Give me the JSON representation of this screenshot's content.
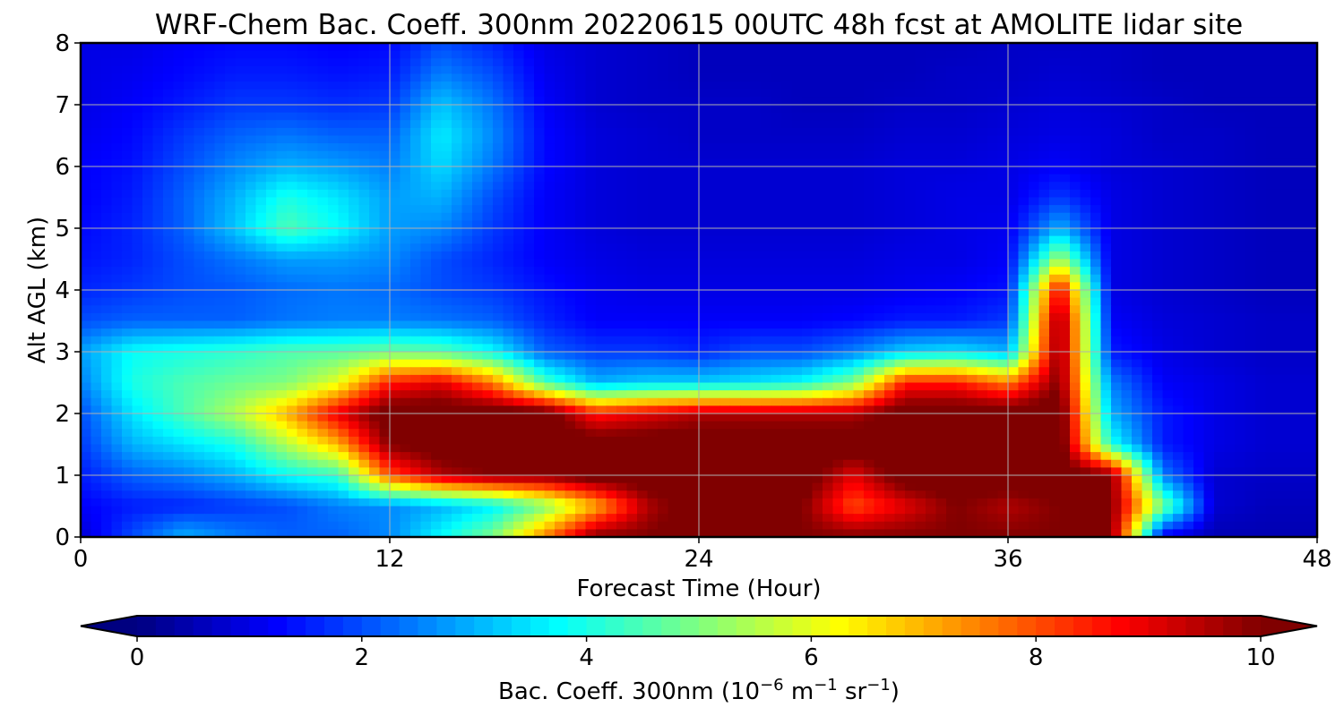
{
  "chart_data": {
    "type": "heatmap",
    "title": "WRF-Chem Bac. Coeff. 300nm  20220615 00UTC 48h fcst at AMOLITE lidar site",
    "xlabel": "Forecast Time (Hour)",
    "ylabel": "Alt AGL (km)",
    "xlim": [
      0,
      48
    ],
    "ylim": [
      0,
      8
    ],
    "x_ticks": [
      "0",
      "12",
      "24",
      "36",
      "48"
    ],
    "y_ticks": [
      "0",
      "1",
      "2",
      "3",
      "4",
      "5",
      "6",
      "7",
      "8"
    ],
    "grid": true,
    "colormap": "jet",
    "colorbar": {
      "label_main": "Bac. Coeff. 300nm  (10",
      "label_exp1": "−6",
      "label_m": " m",
      "label_exp2": "−1",
      "label_sr": " sr",
      "label_exp3": "−1",
      "label_close": ")",
      "range": [
        0,
        10
      ],
      "ticks": [
        "0",
        "2",
        "4",
        "6",
        "8",
        "10"
      ],
      "extend": "both"
    },
    "x_hours": [
      0,
      2,
      4,
      6,
      8,
      10,
      12,
      14,
      16,
      18,
      20,
      22,
      24,
      26,
      28,
      30,
      32,
      34,
      36,
      38,
      40,
      42,
      44,
      46,
      48
    ],
    "y_km": [
      0,
      0.5,
      1,
      1.5,
      2,
      2.5,
      3,
      3.5,
      4,
      4.5,
      5,
      5.5,
      6,
      6.5,
      7,
      7.5,
      8
    ],
    "values": [
      [
        0.8,
        2.0,
        3.0,
        2.5,
        2.2,
        2.2,
        2.6,
        3.8,
        5.0,
        7.5,
        10,
        10,
        10.5,
        10.5,
        10,
        10,
        10,
        10,
        10,
        10,
        10,
        1.0,
        0.5,
        0.5,
        0.5
      ],
      [
        1.2,
        1.5,
        1.6,
        1.8,
        2.0,
        2.5,
        2.6,
        3.0,
        3.6,
        5.0,
        7.0,
        9.5,
        10.5,
        10.5,
        10,
        8.0,
        9.0,
        10,
        9.5,
        10,
        10,
        5.0,
        0.8,
        0.6,
        0.6
      ],
      [
        1.5,
        2.2,
        2.5,
        3.0,
        3.8,
        4.3,
        8.0,
        9.5,
        10,
        10,
        10.5,
        10.5,
        10.5,
        10.5,
        10.5,
        9.0,
        10.5,
        10.5,
        10.5,
        10.5,
        10,
        2.5,
        0.8,
        0.7,
        0.7
      ],
      [
        1.8,
        3.0,
        3.5,
        4.0,
        5.5,
        7.0,
        10,
        10.5,
        10.5,
        10.5,
        10.5,
        10.5,
        10.5,
        10.5,
        10.5,
        10.5,
        10.5,
        10.5,
        10.5,
        10.5,
        4.0,
        1.5,
        1.0,
        0.8,
        0.8
      ],
      [
        2.0,
        3.5,
        4.5,
        5.5,
        7.0,
        9.0,
        10.5,
        10.5,
        10.5,
        10.5,
        8.5,
        9.0,
        9.5,
        9.5,
        9.5,
        9.5,
        10.5,
        10.5,
        10.5,
        10.5,
        3.0,
        1.5,
        1.0,
        0.8,
        0.8
      ],
      [
        2.5,
        4.0,
        4.5,
        4.8,
        5.0,
        6.0,
        8.5,
        9.0,
        7.5,
        4.5,
        3.0,
        3.3,
        3.3,
        3.5,
        3.8,
        5.0,
        8.5,
        8.5,
        7.5,
        10,
        2.5,
        1.2,
        1.0,
        0.8,
        0.8
      ],
      [
        2.8,
        3.8,
        4.0,
        4.2,
        4.5,
        4.6,
        4.8,
        4.6,
        3.8,
        2.2,
        1.8,
        1.8,
        1.6,
        2.0,
        2.0,
        2.5,
        3.3,
        3.5,
        3.0,
        10,
        1.5,
        1.0,
        0.8,
        0.7,
        0.7
      ],
      [
        2.0,
        2.2,
        2.2,
        2.2,
        2.4,
        2.5,
        2.5,
        2.4,
        2.2,
        1.6,
        1.2,
        1.2,
        1.2,
        1.2,
        1.2,
        1.3,
        1.5,
        1.5,
        1.8,
        10,
        1.2,
        0.9,
        0.8,
        0.7,
        0.7
      ],
      [
        1.6,
        1.8,
        2.0,
        2.1,
        2.3,
        2.4,
        2.3,
        2.0,
        1.8,
        1.4,
        1.1,
        1.0,
        1.0,
        1.0,
        1.0,
        1.0,
        1.1,
        1.2,
        1.4,
        9.0,
        1.0,
        0.8,
        0.7,
        0.6,
        0.6
      ],
      [
        1.4,
        1.6,
        2.0,
        2.4,
        2.8,
        2.8,
        2.6,
        2.0,
        1.6,
        1.2,
        1.0,
        0.9,
        0.9,
        0.9,
        0.9,
        0.9,
        1.0,
        1.0,
        1.2,
        5.5,
        1.0,
        0.8,
        0.7,
        0.6,
        0.6
      ],
      [
        1.3,
        1.6,
        2.2,
        3.2,
        4.5,
        3.8,
        2.8,
        2.6,
        1.8,
        1.2,
        0.9,
        0.8,
        0.8,
        0.8,
        0.8,
        0.8,
        0.9,
        1.0,
        1.1,
        3.0,
        1.0,
        0.8,
        0.7,
        0.6,
        0.6
      ],
      [
        1.2,
        1.5,
        2.2,
        3.0,
        4.0,
        3.5,
        2.8,
        3.0,
        2.0,
        1.2,
        0.9,
        0.8,
        0.8,
        0.8,
        0.8,
        0.8,
        0.9,
        1.0,
        1.0,
        1.8,
        1.0,
        0.8,
        0.7,
        0.6,
        0.6
      ],
      [
        1.2,
        1.4,
        2.0,
        2.6,
        3.0,
        2.8,
        2.5,
        3.4,
        2.4,
        1.3,
        0.9,
        0.8,
        0.8,
        0.8,
        0.8,
        0.8,
        0.9,
        0.9,
        1.0,
        1.2,
        0.9,
        0.8,
        0.7,
        0.6,
        0.6
      ],
      [
        1.1,
        1.3,
        1.8,
        2.2,
        2.4,
        2.2,
        2.2,
        3.6,
        2.6,
        1.3,
        0.9,
        0.8,
        0.7,
        0.7,
        0.7,
        0.7,
        0.8,
        0.8,
        0.9,
        1.0,
        0.9,
        0.7,
        0.7,
        0.6,
        0.6
      ],
      [
        1.0,
        1.2,
        1.5,
        1.8,
        1.8,
        1.7,
        1.8,
        3.2,
        2.4,
        1.2,
        0.8,
        0.7,
        0.7,
        0.7,
        0.6,
        0.6,
        0.7,
        0.7,
        0.8,
        0.9,
        0.8,
        0.7,
        0.6,
        0.6,
        0.6
      ],
      [
        1.0,
        1.1,
        1.3,
        1.5,
        1.5,
        1.4,
        1.5,
        2.5,
        2.0,
        1.1,
        0.8,
        0.7,
        0.6,
        0.6,
        0.6,
        0.6,
        0.6,
        0.7,
        0.7,
        0.8,
        0.7,
        0.6,
        0.6,
        0.6,
        0.6
      ],
      [
        1.0,
        1.0,
        1.2,
        1.3,
        1.3,
        1.2,
        1.3,
        2.0,
        1.6,
        1.0,
        0.8,
        0.7,
        0.6,
        0.6,
        0.6,
        0.6,
        0.6,
        0.6,
        0.7,
        0.7,
        0.7,
        0.6,
        0.6,
        0.6,
        0.6
      ]
    ]
  }
}
